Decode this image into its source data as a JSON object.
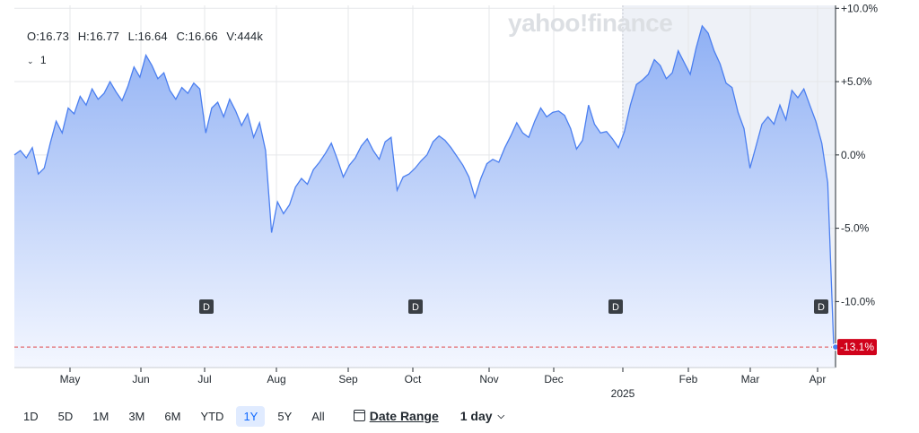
{
  "watermark": "yahoo!finance",
  "ohlc": {
    "open": "O:16.73",
    "high": "H:16.77",
    "low": "L:16.64",
    "close": "C:16.66",
    "volume": "V:444k"
  },
  "compare_toggle": {
    "icon": "chevron-down-icon",
    "label": "1"
  },
  "ranges": [
    "1D",
    "5D",
    "1M",
    "3M",
    "6M",
    "YTD",
    "1Y",
    "5Y",
    "All"
  ],
  "active_range": "1Y",
  "date_range_label": "Date Range",
  "interval_label": "1 day",
  "colors": {
    "line": "#4b7ff0",
    "fill_top": "#8fb0f4",
    "fill_bottom": "#f4f7ff",
    "last_badge": "#d0021b",
    "ref_line": "#e0474c",
    "grid": "#e5e7ea",
    "highlight": "#eef1f7"
  },
  "chart_data": {
    "type": "area",
    "x_ticks": [
      "May",
      "Jun",
      "Jul",
      "Aug",
      "Sep",
      "Oct",
      "Nov",
      "Dec",
      "2025",
      "Feb",
      "Mar",
      "Apr"
    ],
    "y_ticks": [
      "+10.0%",
      "+5.0%",
      "0.0%",
      "-5.0%",
      "-10.0%"
    ],
    "ylim": [
      -14.5,
      10.2
    ],
    "last_value_label": "-13.1%",
    "last_value": -13.1,
    "dividends": [
      {
        "label": "D",
        "date": "Jul"
      },
      {
        "label": "D",
        "date": "Oct"
      },
      {
        "label": "D",
        "date": "Jan"
      },
      {
        "label": "D",
        "date": "Apr"
      }
    ],
    "values": [
      0,
      0.3,
      -0.2,
      0.5,
      -1.3,
      -0.9,
      0.8,
      2.3,
      1.5,
      3.2,
      2.8,
      4,
      3.4,
      4.5,
      3.8,
      4.2,
      5,
      4.3,
      3.7,
      4.7,
      6,
      5.3,
      6.8,
      6.1,
      5.2,
      5.6,
      4.4,
      3.8,
      4.6,
      4.2,
      4.9,
      4.5,
      1.5,
      3.2,
      3.6,
      2.6,
      3.8,
      3,
      2,
      2.8,
      1.2,
      2.2,
      0.3,
      -5.3,
      -3.2,
      -4,
      -3.4,
      -2.2,
      -1.6,
      -2,
      -1,
      -0.5,
      0.1,
      0.8,
      -0.3,
      -1.5,
      -0.7,
      -0.2,
      0.6,
      1.1,
      0.3,
      -0.3,
      0.9,
      1.2,
      -2.4,
      -1.5,
      -1.3,
      -0.9,
      -0.4,
      0,
      0.9,
      1.3,
      1,
      0.5,
      -0.1,
      -0.7,
      -1.5,
      -2.9,
      -1.6,
      -0.6,
      -0.3,
      -0.5,
      0.5,
      1.3,
      2.2,
      1.5,
      1.2,
      2.3,
      3.2,
      2.6,
      2.9,
      3,
      2.7,
      1.8,
      0.4,
      1,
      3.4,
      2.1,
      1.5,
      1.6,
      1.1,
      0.5,
      1.6,
      3.4,
      4.8,
      5.1,
      5.5,
      6.5,
      6.1,
      5.2,
      5.6,
      7.1,
      6.3,
      5.5,
      7.3,
      8.8,
      8.3,
      7.1,
      6.2,
      4.9,
      4.6,
      2.9,
      1.8,
      -0.9,
      0.6,
      2.1,
      2.6,
      2.1,
      3.4,
      2.4,
      4.4,
      3.9,
      4.5,
      3.4,
      2.3,
      0.8,
      -1.9,
      -13.1
    ]
  }
}
